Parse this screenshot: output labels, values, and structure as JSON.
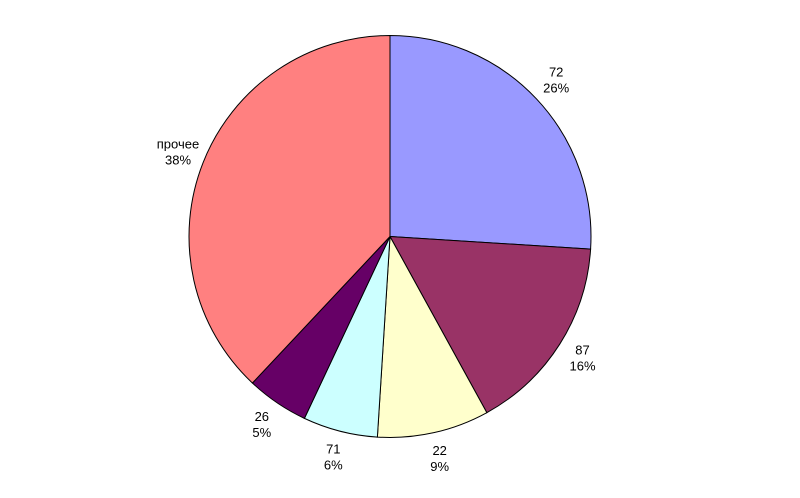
{
  "chart_data": {
    "type": "pie",
    "title": "",
    "legend": "none",
    "grid": "off",
    "direction": "clockwise",
    "start_angle_deg": 0,
    "background_color": "#FFFFFF",
    "outline_color": "#000000",
    "label_text_color": "#000000",
    "categories": [
      "72",
      "87",
      "22",
      "71",
      "26",
      "прочее"
    ],
    "values": [
      26,
      16,
      9,
      6,
      5,
      38
    ],
    "value_unit": "percent",
    "slices": [
      {
        "category": "72",
        "percent": 26,
        "percent_label": "26%",
        "color": "#9999FF"
      },
      {
        "category": "87",
        "percent": 16,
        "percent_label": "16%",
        "color": "#993366"
      },
      {
        "category": "22",
        "percent": 9,
        "percent_label": "9%",
        "color": "#FFFFCC"
      },
      {
        "category": "71",
        "percent": 6,
        "percent_label": "6%",
        "color": "#CCFFFF"
      },
      {
        "category": "26",
        "percent": 5,
        "percent_label": "5%",
        "color": "#660066"
      },
      {
        "category": "прочее",
        "percent": 38,
        "percent_label": "38%",
        "color": "#FF8080"
      }
    ]
  }
}
